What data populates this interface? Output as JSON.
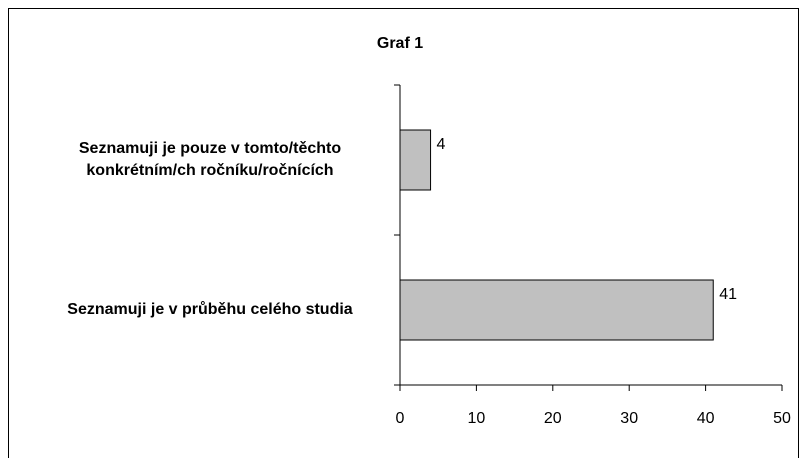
{
  "chart_data": {
    "type": "bar",
    "orientation": "horizontal",
    "title": "Graf 1",
    "categories": [
      "Seznamuji je pouze v tomto/těchto konkrétním/ch ročníku/ročnících",
      "Seznamuji je v průběhu celého studia"
    ],
    "values": [
      4,
      41
    ],
    "color": "#c0c0c0",
    "xlim": [
      0,
      50
    ],
    "xticks": [
      0,
      10,
      20,
      30,
      40,
      50
    ],
    "grid": false
  }
}
